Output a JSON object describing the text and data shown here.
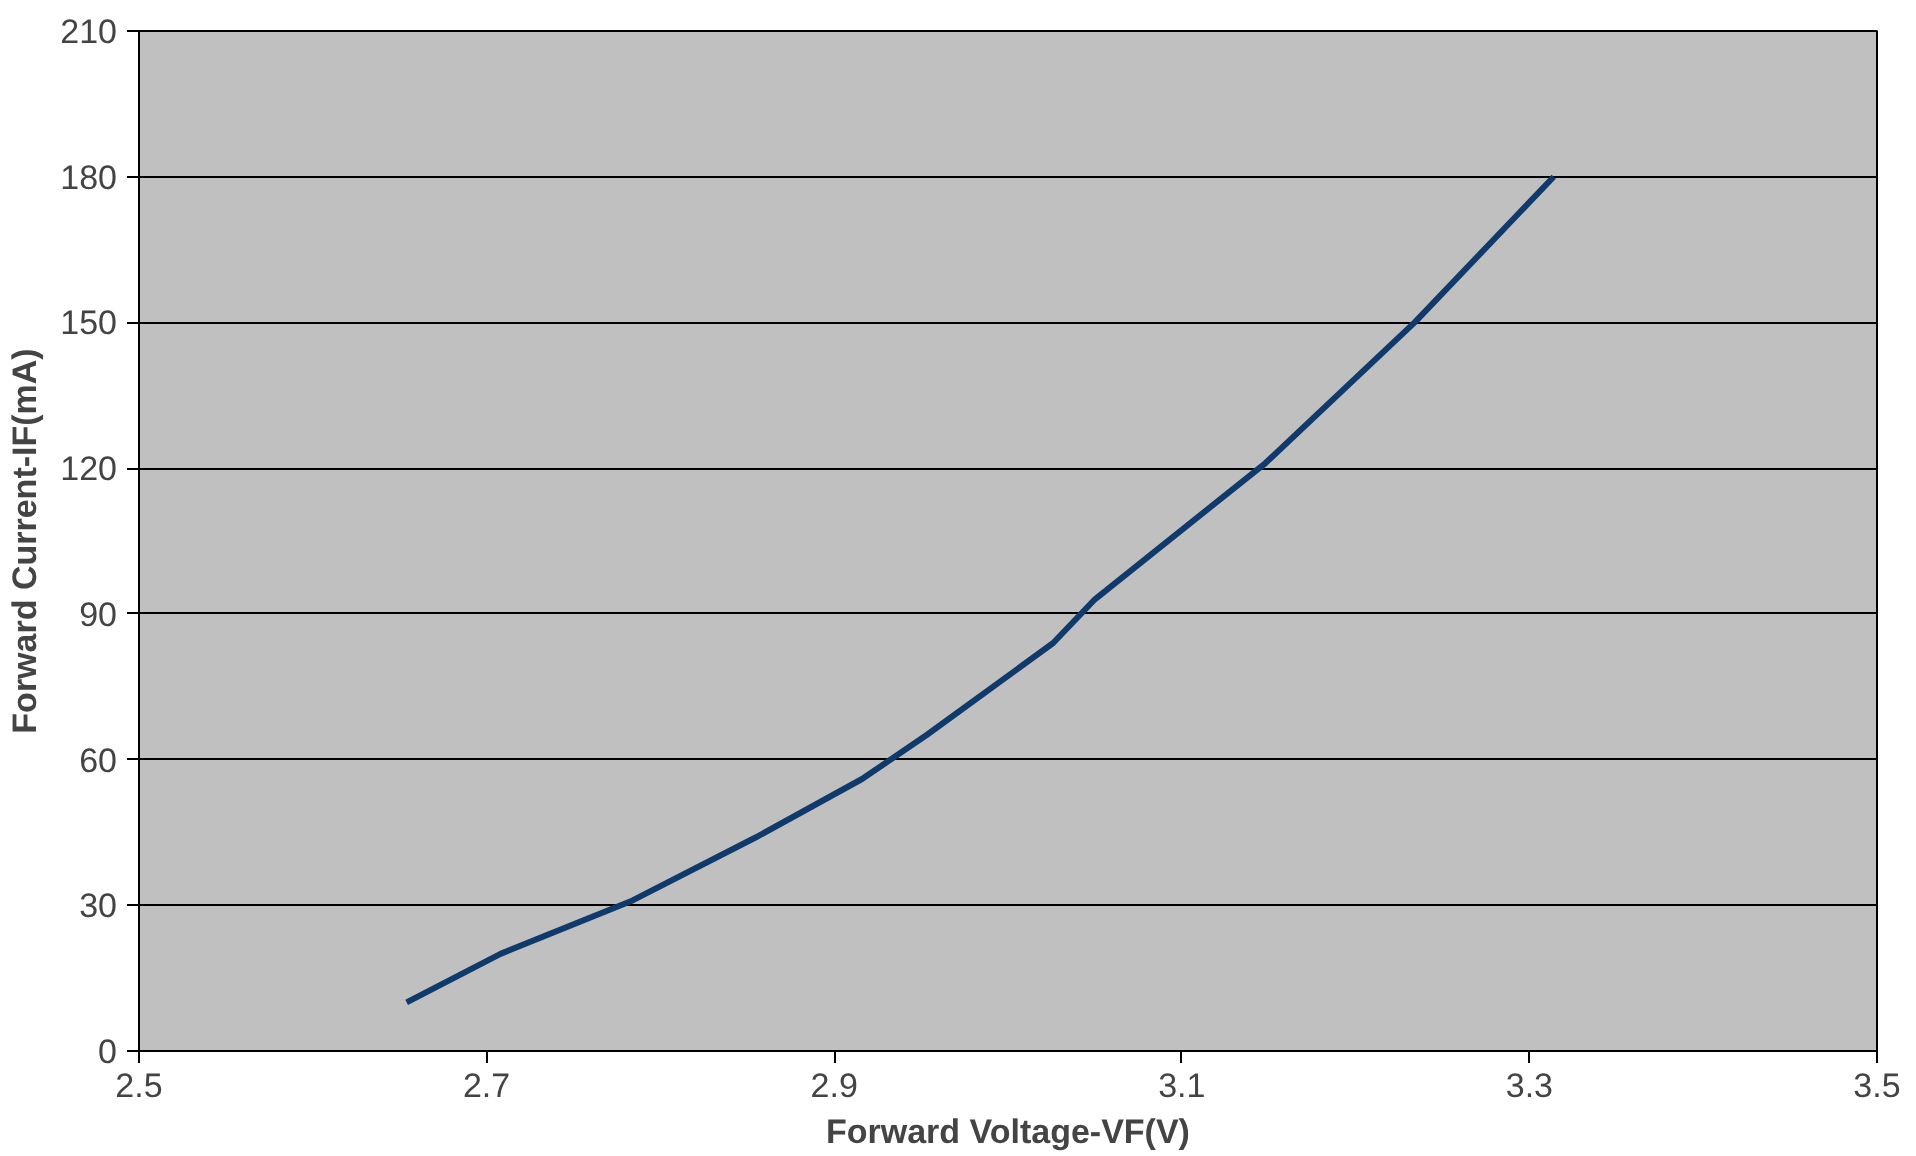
{
  "chart_data": {
    "type": "line",
    "xlabel": "Forward Voltage-VF(V)",
    "ylabel": "Forward Current-IF(mA)",
    "x": [
      2.654,
      2.708,
      2.784,
      2.855,
      2.916,
      2.953,
      3.026,
      3.05,
      3.148,
      3.234,
      3.314
    ],
    "series": [
      {
        "color": "#0f3a6b",
        "values": [
          10,
          20,
          31,
          44,
          56,
          65,
          84,
          93,
          121,
          150,
          180
        ]
      }
    ],
    "xlim": [
      2.5,
      3.5
    ],
    "xticks": [
      2.5,
      2.7,
      2.9,
      3.1,
      3.3,
      3.5
    ],
    "ylim": [
      0,
      210
    ],
    "yticks": [
      0,
      30,
      60,
      90,
      120,
      150,
      180,
      210
    ],
    "grid": "y",
    "marker": "none",
    "line_style": "solid"
  }
}
